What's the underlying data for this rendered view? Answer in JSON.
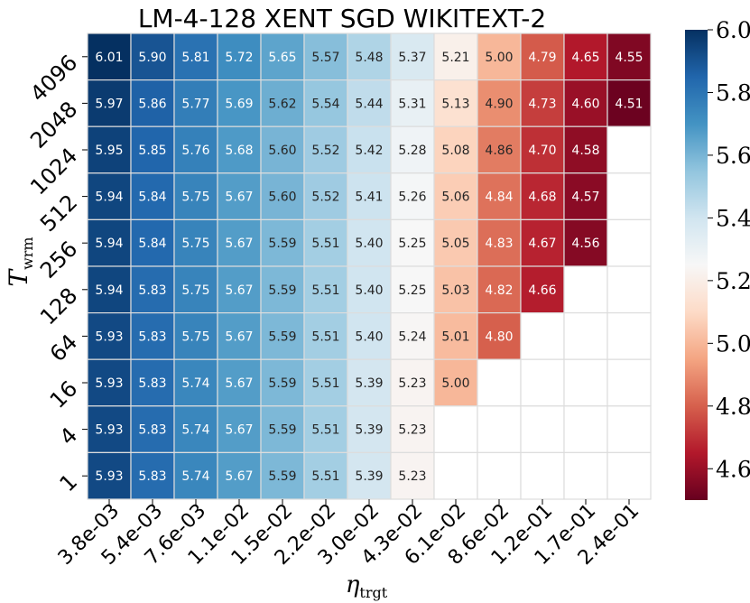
{
  "chart_data": {
    "type": "heatmap",
    "title": "LM-4-128 XENT SGD WIKITEXT-2",
    "xlabel": "η",
    "xlabel_sub": "trgt",
    "ylabel": "T",
    "ylabel_sub": "wrm",
    "x_categories": [
      "3.8e-03",
      "5.4e-03",
      "7.6e-03",
      "1.1e-02",
      "1.5e-02",
      "2.2e-02",
      "3.0e-02",
      "4.3e-02",
      "6.1e-02",
      "8.6e-02",
      "1.2e-01",
      "1.7e-01",
      "2.4e-01"
    ],
    "y_categories": [
      "4096",
      "2048",
      "1024",
      "512",
      "256",
      "128",
      "64",
      "16",
      "4",
      "1"
    ],
    "values": [
      [
        6.01,
        5.9,
        5.81,
        5.72,
        5.65,
        5.57,
        5.48,
        5.37,
        5.21,
        5.0,
        4.79,
        4.65,
        4.55
      ],
      [
        5.97,
        5.86,
        5.77,
        5.69,
        5.62,
        5.54,
        5.44,
        5.31,
        5.13,
        4.9,
        4.73,
        4.6,
        4.51
      ],
      [
        5.95,
        5.85,
        5.76,
        5.68,
        5.6,
        5.52,
        5.42,
        5.28,
        5.08,
        4.86,
        4.7,
        4.58,
        null
      ],
      [
        5.94,
        5.84,
        5.75,
        5.67,
        5.6,
        5.52,
        5.41,
        5.26,
        5.06,
        4.84,
        4.68,
        4.57,
        null
      ],
      [
        5.94,
        5.84,
        5.75,
        5.67,
        5.59,
        5.51,
        5.4,
        5.25,
        5.05,
        4.83,
        4.67,
        4.56,
        null
      ],
      [
        5.94,
        5.83,
        5.75,
        5.67,
        5.59,
        5.51,
        5.4,
        5.25,
        5.03,
        4.82,
        4.66,
        null,
        null
      ],
      [
        5.93,
        5.83,
        5.75,
        5.67,
        5.59,
        5.51,
        5.4,
        5.24,
        5.01,
        4.8,
        null,
        null,
        null
      ],
      [
        5.93,
        5.83,
        5.74,
        5.67,
        5.59,
        5.51,
        5.39,
        5.23,
        5.0,
        null,
        null,
        null,
        null
      ],
      [
        5.93,
        5.83,
        5.74,
        5.67,
        5.59,
        5.51,
        5.39,
        5.23,
        null,
        null,
        null,
        null,
        null
      ],
      [
        5.93,
        5.83,
        5.74,
        5.67,
        5.59,
        5.51,
        5.39,
        5.23,
        null,
        null,
        null,
        null,
        null
      ]
    ],
    "colormap": "RdBu",
    "vmin": 4.5,
    "vmax": 6.0,
    "colorbar_ticks": [
      "6.0",
      "5.8",
      "5.6",
      "5.4",
      "5.2",
      "5.0",
      "4.8",
      "4.6"
    ]
  }
}
